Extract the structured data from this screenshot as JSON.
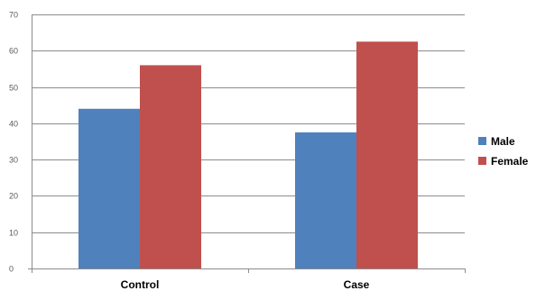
{
  "chart_data": {
    "type": "bar",
    "categories": [
      "Control",
      "Case"
    ],
    "series": [
      {
        "name": "Male",
        "values": [
          44,
          37.5
        ],
        "color": "#4f81bd"
      },
      {
        "name": "Female",
        "values": [
          56,
          62.5
        ],
        "color": "#c0504d"
      }
    ],
    "ylim": [
      0,
      70
    ],
    "yticks": [
      0,
      10,
      20,
      30,
      40,
      50,
      60,
      70
    ],
    "grid": true,
    "legend_position": "right",
    "title": "",
    "xlabel": "",
    "ylabel": ""
  }
}
